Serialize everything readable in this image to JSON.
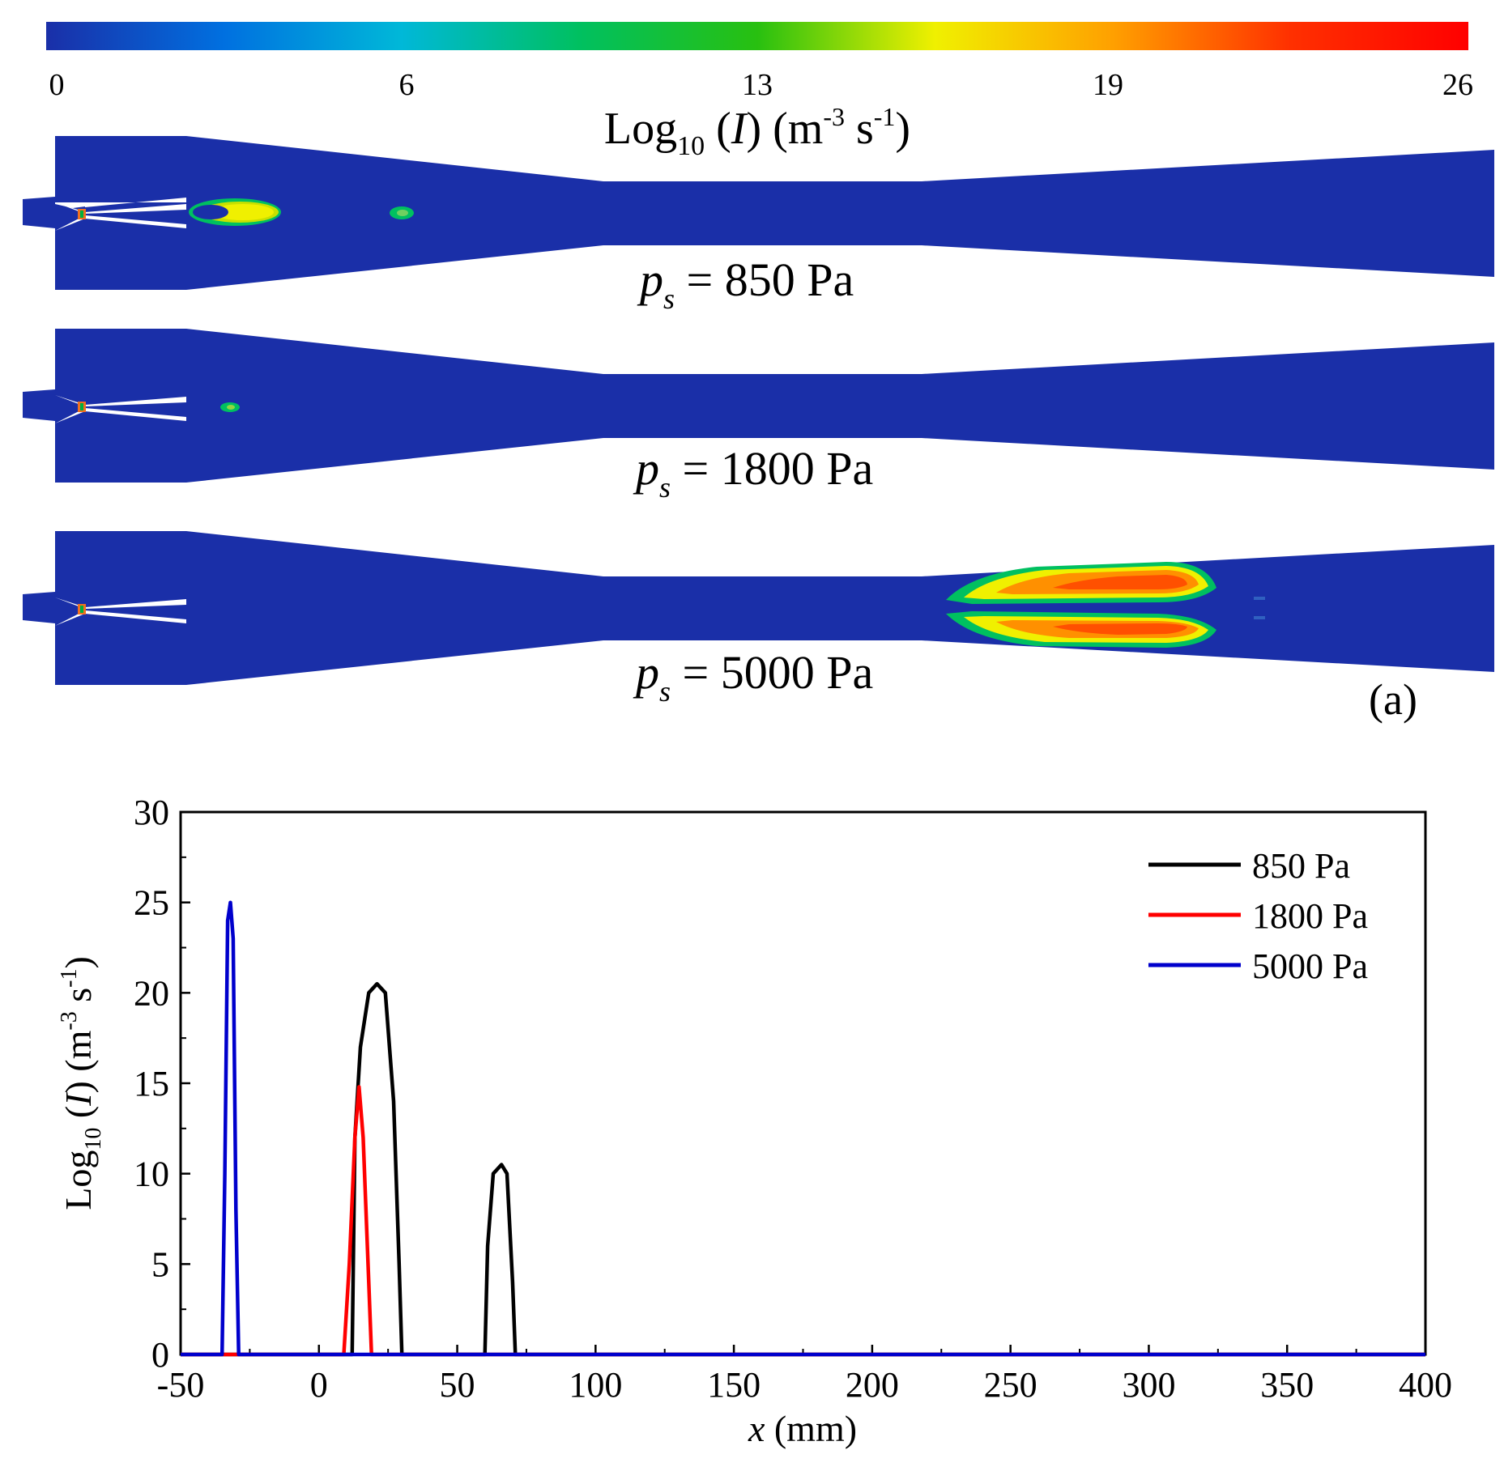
{
  "colorbar": {
    "ticks": [
      "0",
      "6",
      "13",
      "19",
      "26"
    ],
    "title_main": "Log",
    "title_sub": "10",
    "title_paren": " (",
    "title_var": "I",
    "title_close": ") (m",
    "title_exp1": "-3",
    "title_mid": " s",
    "title_exp2": "-1",
    "title_end": ")",
    "min": 0,
    "max": 26,
    "colors": [
      "#1a2fa8",
      "#0070e0",
      "#00b8d8",
      "#00c060",
      "#28c010",
      "#f0f000",
      "#ffa000",
      "#ff3000",
      "#ff0000"
    ]
  },
  "panels": [
    {
      "symbol": "p",
      "subscript": "s",
      "equals": " = 850 Pa"
    },
    {
      "symbol": "p",
      "subscript": "s",
      "equals": " = 1800 Pa"
    },
    {
      "symbol": "p",
      "subscript": "s",
      "equals": " = 5000 Pa"
    }
  ],
  "panel_label": "(a)",
  "chart_data": {
    "type": "line",
    "title": "",
    "xlabel_var": "x",
    "xlabel_unit": " (mm)",
    "ylabel_main": "Log",
    "ylabel_sub": "10",
    "ylabel_paren": " (",
    "ylabel_var": "I",
    "ylabel_close": ") (m",
    "ylabel_exp1": "-3",
    "ylabel_mid": " s",
    "ylabel_exp2": "-1",
    "ylabel_end": ")",
    "xlim": [
      -50,
      400
    ],
    "ylim": [
      0,
      30
    ],
    "xticks": [
      -50,
      0,
      50,
      100,
      150,
      200,
      250,
      300,
      350,
      400
    ],
    "yticks": [
      0,
      5,
      10,
      15,
      20,
      25,
      30
    ],
    "legend_position": "top-right",
    "series": [
      {
        "name": "850 Pa",
        "color": "#000000",
        "x": [
          -50,
          12,
          13,
          15,
          18,
          21,
          24,
          27,
          29,
          30,
          31,
          60,
          61,
          63,
          66,
          68,
          70,
          71,
          72,
          400
        ],
        "y": [
          0,
          0,
          12,
          17,
          20,
          20.5,
          20,
          14,
          5,
          0,
          0,
          0,
          6,
          10,
          10.5,
          10,
          4,
          0,
          0,
          0
        ]
      },
      {
        "name": "1800 Pa",
        "color": "#ff0000",
        "x": [
          -50,
          9,
          11,
          13,
          14.5,
          16,
          18,
          19,
          400
        ],
        "y": [
          0,
          0,
          5,
          12,
          14.8,
          12,
          4,
          0,
          0
        ]
      },
      {
        "name": "5000 Pa",
        "color": "#0000cc",
        "x": [
          -50,
          -35,
          -34,
          -33,
          -32,
          -31,
          -30,
          -29,
          400
        ],
        "y": [
          0,
          0,
          10,
          24,
          25,
          23,
          8,
          0,
          0
        ]
      }
    ]
  }
}
